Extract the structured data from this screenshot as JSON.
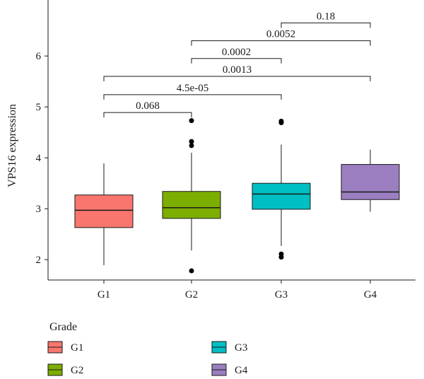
{
  "chart_data": {
    "type": "boxplot",
    "ylabel": "VPS16 expression",
    "xlabel": "",
    "ylim": [
      1.6,
      7.1
    ],
    "yticks": [
      2,
      3,
      4,
      5,
      6
    ],
    "categories": [
      "G1",
      "G2",
      "G3",
      "G4"
    ],
    "boxes": [
      {
        "group": "G1",
        "q1": 2.63,
        "median": 2.97,
        "q3": 3.27,
        "whisker_low": 1.89,
        "whisker_high": 3.89,
        "outliers": [],
        "color": "#F8766D"
      },
      {
        "group": "G2",
        "q1": 2.81,
        "median": 3.02,
        "q3": 3.34,
        "whisker_low": 2.18,
        "whisker_high": 4.1,
        "outliers": [
          1.78,
          4.24,
          4.32,
          4.73
        ],
        "color": "#7CAE00"
      },
      {
        "group": "G3",
        "q1": 2.99,
        "median": 3.29,
        "q3": 3.5,
        "whisker_low": 2.27,
        "whisker_high": 4.26,
        "outliers": [
          2.05,
          2.11,
          4.69,
          4.72
        ],
        "color": "#00BFC4"
      },
      {
        "group": "G4",
        "q1": 3.18,
        "median": 3.33,
        "q3": 3.87,
        "whisker_low": 2.94,
        "whisker_high": 4.16,
        "outliers": [],
        "color": "#9B7FC0"
      }
    ],
    "comparisons": [
      {
        "from": "G1",
        "to": "G2",
        "p": "0.068",
        "y": 4.89
      },
      {
        "from": "G1",
        "to": "G3",
        "p": "4.5e-05",
        "y": 5.24
      },
      {
        "from": "G1",
        "to": "G4",
        "p": "0.0013",
        "y": 5.6
      },
      {
        "from": "G2",
        "to": "G3",
        "p": "0.0002",
        "y": 5.95
      },
      {
        "from": "G2",
        "to": "G4",
        "p": "0.0052",
        "y": 6.3
      },
      {
        "from": "G3",
        "to": "G4",
        "p": "0.18",
        "y": 6.65
      }
    ],
    "legend": {
      "title": "Grade",
      "placement": "bottom",
      "entries": [
        {
          "label": "G1",
          "color": "#F8766D"
        },
        {
          "label": "G2",
          "color": "#7CAE00"
        },
        {
          "label": "G3",
          "color": "#00BFC4"
        },
        {
          "label": "G4",
          "color": "#9B7FC0"
        }
      ]
    }
  }
}
